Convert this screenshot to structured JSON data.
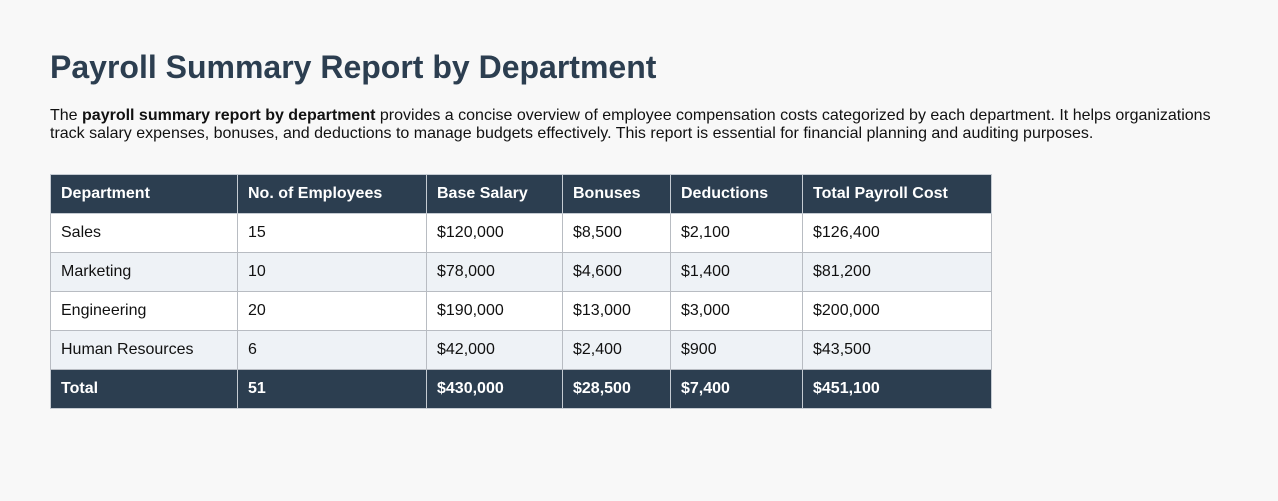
{
  "report": {
    "title": "Payroll Summary Report by Department",
    "description": {
      "prefix": "The ",
      "bold": "payroll summary report by department",
      "suffix": " provides a concise overview of employee compensation costs categorized by each department. It helps organizations track salary expenses, bonuses, and deductions to manage budgets effectively. This report is essential for financial planning and auditing purposes."
    }
  },
  "table": {
    "headers": [
      "Department",
      "No. of Employees",
      "Base Salary",
      "Bonuses",
      "Deductions",
      "Total Payroll Cost"
    ],
    "rows": [
      [
        "Sales",
        "15",
        "$120,000",
        "$8,500",
        "$2,100",
        "$126,400"
      ],
      [
        "Marketing",
        "10",
        "$78,000",
        "$4,600",
        "$1,400",
        "$81,200"
      ],
      [
        "Engineering",
        "20",
        "$190,000",
        "$13,000",
        "$3,000",
        "$200,000"
      ],
      [
        "Human Resources",
        "6",
        "$42,000",
        "$2,400",
        "$900",
        "$43,500"
      ]
    ],
    "total": [
      "Total",
      "51",
      "$430,000",
      "$28,500",
      "$7,400",
      "$451,100"
    ]
  },
  "colors": {
    "page_background": "#f8f8f8",
    "title": "#2c3e50",
    "header_background": "#2c3e50",
    "header_text": "#ffffff",
    "row_odd": "#ffffff",
    "row_even": "#eef2f6",
    "border": "#b8bcc2"
  }
}
